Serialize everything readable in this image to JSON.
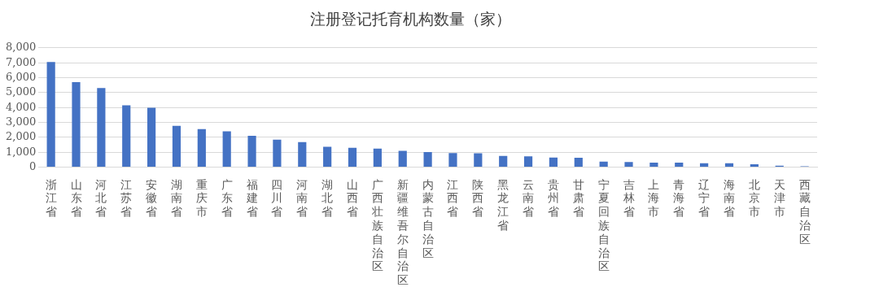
{
  "chart_data": {
    "type": "bar",
    "title": "注册登记托育机构数量（家）",
    "categories": [
      "浙江省",
      "山东省",
      "河北省",
      "江苏省",
      "安徽省",
      "湖南省",
      "重庆市",
      "广东省",
      "福建省",
      "四川省",
      "河南省",
      "湖北省",
      "山西省",
      "广西壮族自治区",
      "新疆维吾尔自治区",
      "内蒙古自治区",
      "江西省",
      "陕西省",
      "黑龙江省",
      "云南省",
      "贵州省",
      "甘肃省",
      "宁夏回族自治区",
      "吉林省",
      "上海市",
      "青海省",
      "辽宁省",
      "海南省",
      "北京市",
      "天津市",
      "西藏自治区"
    ],
    "values": [
      7050,
      5700,
      5300,
      4150,
      3980,
      2770,
      2550,
      2400,
      2100,
      1850,
      1680,
      1370,
      1300,
      1250,
      1100,
      1020,
      950,
      930,
      750,
      730,
      650,
      630,
      370,
      350,
      310,
      300,
      260,
      260,
      200,
      100,
      60
    ],
    "color": "#4472c4",
    "ylim": [
      0,
      8000
    ],
    "yticks": [
      {
        "value": 0,
        "label": "0"
      },
      {
        "value": 1000,
        "label": "1,000"
      },
      {
        "value": 2000,
        "label": "2,000"
      },
      {
        "value": 3000,
        "label": "3,000"
      },
      {
        "value": 4000,
        "label": "4,000"
      },
      {
        "value": 5000,
        "label": "5,000"
      },
      {
        "value": 6000,
        "label": "6,000"
      },
      {
        "value": 7000,
        "label": "7,000"
      },
      {
        "value": 8000,
        "label": "8,000"
      }
    ],
    "grid": "y",
    "legend": false
  }
}
